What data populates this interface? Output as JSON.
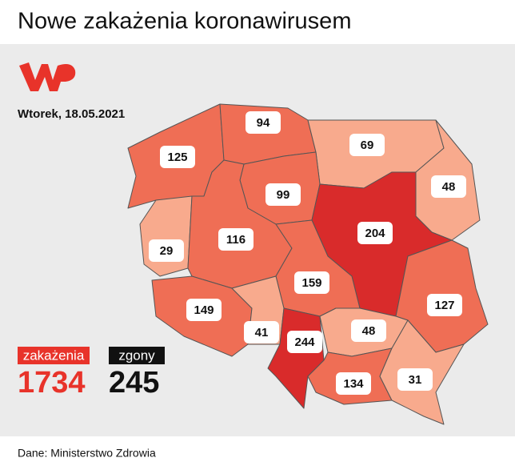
{
  "header": {
    "title": "Nowe zakażenia koronawirusem"
  },
  "date": "Wtorek, 18.05.2021",
  "regions": [
    {
      "value": 125,
      "color": "#ef6e55"
    },
    {
      "value": 94,
      "color": "#ef6e55"
    },
    {
      "value": 69,
      "color": "#f8aa8d"
    },
    {
      "value": 48,
      "color": "#f8aa8d"
    },
    {
      "value": 99,
      "color": "#ef6e55"
    },
    {
      "value": 29,
      "color": "#f8aa8d"
    },
    {
      "value": 116,
      "color": "#ef6e55"
    },
    {
      "value": 204,
      "color": "#d92b2b"
    },
    {
      "value": 159,
      "color": "#ef6e55"
    },
    {
      "value": 127,
      "color": "#ef6e55"
    },
    {
      "value": 149,
      "color": "#ef6e55"
    },
    {
      "value": 41,
      "color": "#f8aa8d"
    },
    {
      "value": 244,
      "color": "#d92b2b"
    },
    {
      "value": 48,
      "color": "#f8aa8d"
    },
    {
      "value": 134,
      "color": "#ef6e55"
    },
    {
      "value": 31,
      "color": "#f8aa8d"
    }
  ],
  "totals": {
    "cases_label": "zakażenia",
    "cases": 1734,
    "deaths_label": "zgony",
    "deaths": 245
  },
  "source": "Dane: Ministerstwo Zdrowia"
}
